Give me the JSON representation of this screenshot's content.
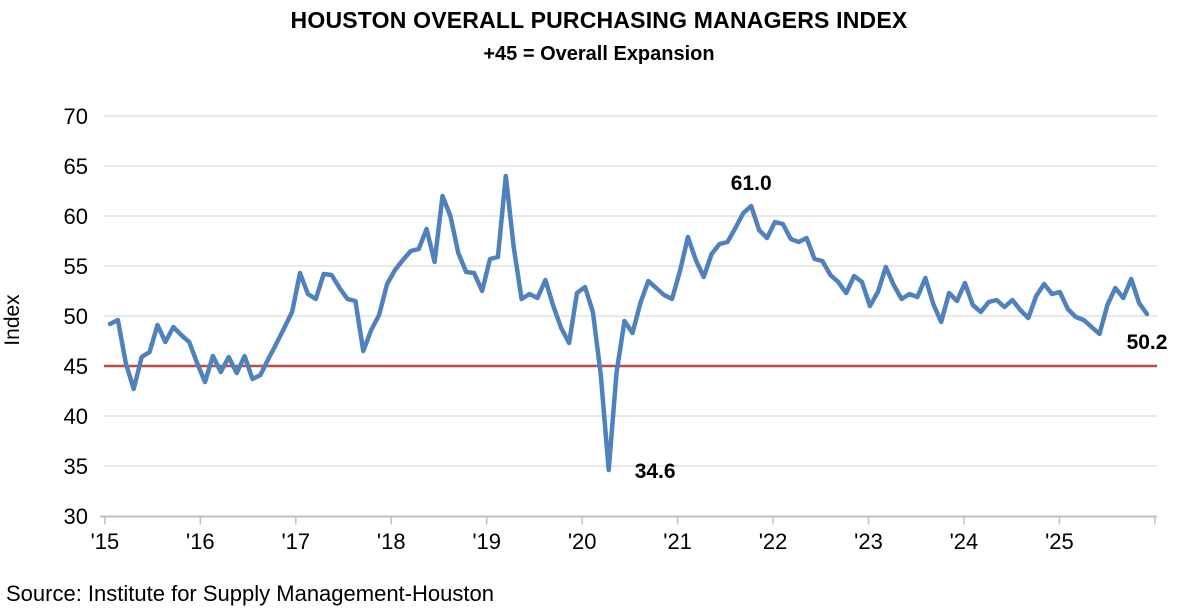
{
  "header": {
    "title": "HOUSTON OVERALL PURCHASING MANAGERS INDEX",
    "subtitle": "+45 = Overall Expansion"
  },
  "source": "Source: Institute for Supply Management-Houston",
  "colors": {
    "series_line": "#4F81BD",
    "reference_line": "#BE4B48",
    "gridline": "#D9D9D9",
    "axis_line": "#BFBFBF",
    "text": "#000000"
  },
  "chart_data": {
    "type": "line",
    "title": "HOUSTON OVERALL PURCHASING MANAGERS INDEX",
    "subtitle": "+45 = Overall Expansion",
    "xlabel": "",
    "ylabel": "Index",
    "x_start": "2015-01",
    "x_end": "2025-12",
    "frequency": "monthly",
    "x_tick_labels": [
      "'15",
      "'16",
      "'17",
      "'18",
      "'19",
      "'20",
      "'21",
      "'22",
      "'23",
      "'24",
      "'25"
    ],
    "y_ticks": [
      30,
      35,
      40,
      45,
      50,
      55,
      60,
      65,
      70
    ],
    "ylim": [
      30,
      70
    ],
    "grid": "horizontal",
    "legend": "none",
    "reference_line": {
      "value": 45,
      "meaning": "+45 = Overall Expansion"
    },
    "series": [
      {
        "name": "Houston Overall Purchasing Managers Index",
        "values": [
          49.2,
          49.6,
          45.3,
          42.7,
          45.9,
          46.4,
          49.1,
          47.4,
          48.9,
          48.1,
          47.4,
          45.3,
          43.4,
          46.0,
          44.4,
          45.9,
          44.3,
          46.0,
          43.7,
          44.1,
          45.7,
          47.2,
          48.8,
          50.4,
          54.3,
          52.2,
          51.7,
          54.2,
          54.1,
          52.8,
          51.7,
          51.5,
          46.5,
          48.6,
          50.1,
          53.2,
          54.6,
          55.6,
          56.5,
          56.7,
          58.7,
          55.4,
          62.0,
          60.0,
          56.3,
          54.4,
          54.3,
          52.5,
          55.7,
          55.9,
          64.0,
          56.9,
          51.7,
          52.2,
          51.8,
          53.6,
          51.0,
          48.8,
          47.3,
          52.3,
          52.9,
          50.4,
          44.1,
          34.6,
          44.4,
          49.5,
          48.3,
          51.3,
          53.5,
          52.8,
          52.1,
          51.7,
          54.5,
          57.9,
          55.6,
          53.9,
          56.2,
          57.2,
          57.4,
          58.8,
          60.3,
          61.0,
          58.6,
          57.8,
          59.4,
          59.2,
          57.7,
          57.4,
          57.8,
          55.7,
          55.5,
          54.1,
          53.4,
          52.3,
          54.0,
          53.4,
          51.0,
          52.4,
          54.9,
          53.1,
          51.7,
          52.2,
          51.9,
          53.8,
          51.2,
          49.4,
          52.3,
          51.5,
          53.3,
          51.1,
          50.4,
          51.4,
          51.6,
          50.9,
          51.6,
          50.6,
          49.8,
          52.0,
          53.2,
          52.2,
          52.4,
          50.7,
          49.9,
          49.6,
          48.9,
          48.2,
          51.1,
          52.8,
          51.8,
          53.7,
          51.3,
          50.2
        ]
      }
    ],
    "annotations": [
      {
        "text": "61.0",
        "month": "2021-10",
        "index": 81,
        "value": 61.0
      },
      {
        "text": "34.6",
        "month": "2020-04",
        "index": 63,
        "value": 34.6
      },
      {
        "text": "50.2",
        "month": "2025-12",
        "index": 131,
        "value": 50.2
      }
    ]
  }
}
